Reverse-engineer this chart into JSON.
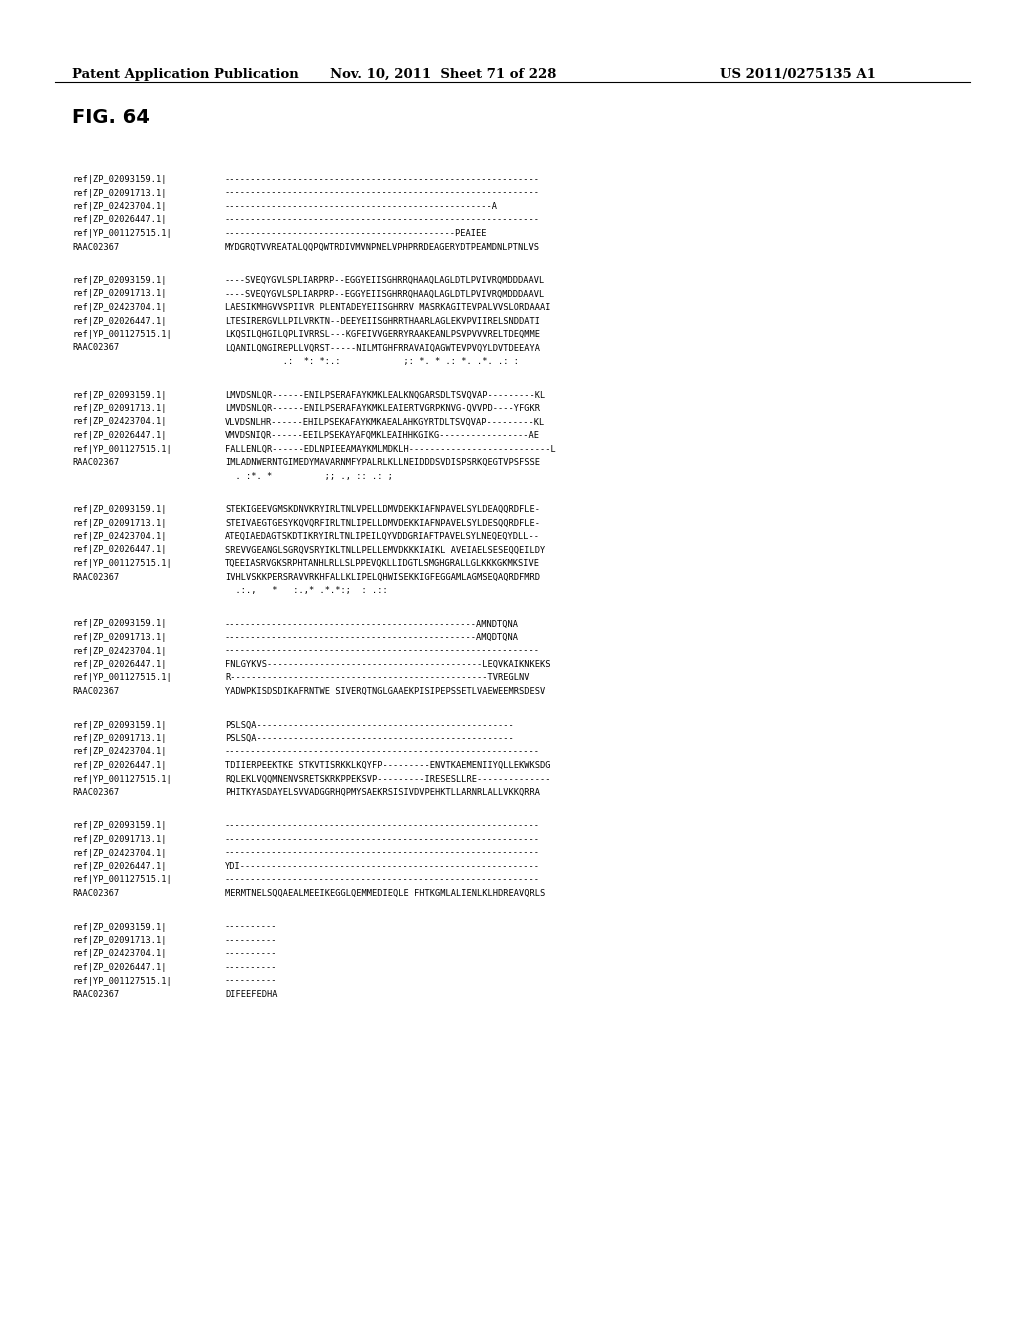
{
  "header_left": "Patent Application Publication",
  "header_middle": "Nov. 10, 2011  Sheet 71 of 228",
  "header_right": "US 2011/0275135 A1",
  "fig_label": "FIG. 64",
  "sequences": [
    {
      "block": 1,
      "rows": [
        [
          "ref|ZP_02093159.1|",
          "------------------------------------------------------------"
        ],
        [
          "ref|ZP_02091713.1|",
          "------------------------------------------------------------"
        ],
        [
          "ref|ZP_02423704.1|",
          "---------------------------------------------------A"
        ],
        [
          "ref|ZP_02026447.1|",
          "------------------------------------------------------------"
        ],
        [
          "ref|YP_001127515.1|",
          "--------------------------------------------PEAIEE"
        ],
        [
          "RAAC02367",
          "MYDGRQTVVREATALQQPQWTRDIVMVNPNELVPHPRRDEAGERYDTPEAMDNLPTNLVS"
        ]
      ],
      "consensus": ""
    },
    {
      "block": 2,
      "rows": [
        [
          "ref|ZP_02093159.1|",
          "----SVEQYGVLSPLIARPRP--EGGYEIISGHRRQHAAQLAGLDTLPVIVRQMDDDAAVL"
        ],
        [
          "ref|ZP_02091713.1|",
          "----SVEQYGVLSPLIARPRP--EGGYEIISGHRRQHAAQLAGLDTLPVIVRQMDDDAAVL"
        ],
        [
          "ref|ZP_02423704.1|",
          "LAESIKMHGVVSPIIVR PLENTADEYEIISGHRRV MASRKAGITEVPALVVSLORDAAAI"
        ],
        [
          "ref|ZP_02026447.1|",
          "LTESIRERGVLLPILVRKTN--DEEYEIISGHRRTHAARLAGLEKVPVIIRELSNDDATI"
        ],
        [
          "ref|YP_001127515.1|",
          "LKQSILQHGILQPLIVRRSL---KGFEIVVGERRYRAAKEANLPSVPVVVRELTDEQMME"
        ],
        [
          "RAAC02367",
          "LQANILQNGIREPLLVQRST-----NILMTGHFRRAVAIQAGWTEVPVQYLDVTDEEAYA"
        ]
      ],
      "consensus": "           .:  *: *:.:            ;: *. * .: *. .*. .: :"
    },
    {
      "block": 3,
      "rows": [
        [
          "ref|ZP_02093159.1|",
          "LMVDSNLQR------ENILPSERAFAYKMKLEALKNQGARSDLTSVQVAP---------KL"
        ],
        [
          "ref|ZP_02091713.1|",
          "LMVDSNLQR------ENILPSERAFAYKMKLEAIERTVGRPKNVG-QVVPD----YFGKR"
        ],
        [
          "ref|ZP_02423704.1|",
          "VLVDSNLHR------EHILPSEKAFAYKMKAEALAHKGYRTDLTSVQVAP---------KL"
        ],
        [
          "ref|ZP_02026447.1|",
          "VMVDSNIQR------EEILPSEKAYAFQMKLEAIHHKGIKG-----------------AE"
        ],
        [
          "ref|YP_001127515.1|",
          "FALLENLQR------EDLNPIEEAMAYKMLMDKLH---------------------------L"
        ],
        [
          "RAAC02367",
          "IMLADNWERNTGIMEDYMAVARNMFYPALRLKLLNEIDDDSVDISPSRKQEGTVPSFSSE"
        ]
      ],
      "consensus": "  . :*. *          ;; ., :: .: ;"
    },
    {
      "block": 4,
      "rows": [
        [
          "ref|ZP_02093159.1|",
          "STEKIGEEVGMSKDNVKRYIRLTNLVPELLDMVDEKKIAFNPAVELSYLDEAQQRDFLE-"
        ],
        [
          "ref|ZP_02091713.1|",
          "STEIVAEGTGESYKQVQRFIRLTNLIPELLDMVDEKKIAFNPAVELSYLDESQQRDFLE-"
        ],
        [
          "ref|ZP_02423704.1|",
          "ATEQIAEDAGTSKDTIKRYIRLTNLIPEILQYVDDGRIAFTPAVELSYLNEQEQYDLL--"
        ],
        [
          "ref|ZP_02026447.1|",
          "SREVVGEANGLSGRQVSRYIKLTNLLPELLEMVDKKKIAIKL AVEIAELSESEQQEILDY"
        ],
        [
          "ref|YP_001127515.1|",
          "TQEEIASRVGKSRPHTANHLRLLSLPPEVQKLLIDGTLSMGHGRALLGLKKKGKMKSIVE"
        ],
        [
          "RAAC02367",
          "IVHLVSKKPERSRAVVRKHFALLKLIPELQHWISEKKIGFEGGAMLAGMSEQAQRDFMRD"
        ]
      ],
      "consensus": "  .:.,   *   :.,* .*.*:;  : .::"
    },
    {
      "block": 5,
      "rows": [
        [
          "ref|ZP_02093159.1|",
          "------------------------------------------------AMNDTQNA"
        ],
        [
          "ref|ZP_02091713.1|",
          "------------------------------------------------AMQDTQNA"
        ],
        [
          "ref|ZP_02423704.1|",
          "------------------------------------------------------------"
        ],
        [
          "ref|ZP_02026447.1|",
          "FNLGYKVS-----------------------------------------LEQVKAIKNKEKS"
        ],
        [
          "ref|YP_001127515.1|",
          "R-------------------------------------------------TVREGLNV"
        ],
        [
          "RAAC02367",
          "YADWPKISDSDIKAFRNTWE SIVERQTNGLGAAEKPISIPEPSSETLVAEWEEMRSDESV"
        ]
      ],
      "consensus": ""
    },
    {
      "block": 6,
      "rows": [
        [
          "ref|ZP_02093159.1|",
          "PSLSQA-------------------------------------------------"
        ],
        [
          "ref|ZP_02091713.1|",
          "PSLSQA-------------------------------------------------"
        ],
        [
          "ref|ZP_02423704.1|",
          "------------------------------------------------------------"
        ],
        [
          "ref|ZP_02026447.1|",
          "TDIIERPEEKTKE STKVTISRKKLKQYFP---------ENVTKAEMENIIYQLLEKWKSDG"
        ],
        [
          "ref|YP_001127515.1|",
          "RQLEKLVQQMNENVSRETSKRKPPEKSVP---------IRESESLLRE--------------"
        ],
        [
          "RAAC02367",
          "PHITKYASDAYELSVVADGGRHQPMYSAEKRSISIVDVPEHKTLLARNRLALLVKKQRRA"
        ]
      ],
      "consensus": ""
    },
    {
      "block": 7,
      "rows": [
        [
          "ref|ZP_02093159.1|",
          "------------------------------------------------------------"
        ],
        [
          "ref|ZP_02091713.1|",
          "------------------------------------------------------------"
        ],
        [
          "ref|ZP_02423704.1|",
          "------------------------------------------------------------"
        ],
        [
          "ref|ZP_02026447.1|",
          "YDI---------------------------------------------------------"
        ],
        [
          "ref|YP_001127515.1|",
          "------------------------------------------------------------"
        ],
        [
          "RAAC02367",
          "MERMTNELSQQAEALMEEIKEGGLQEMMEDIEQLE FHTKGMLALIENLKLHDREAVQRLS"
        ]
      ],
      "consensus": ""
    },
    {
      "block": 8,
      "rows": [
        [
          "ref|ZP_02093159.1|",
          "----------"
        ],
        [
          "ref|ZP_02091713.1|",
          "----------"
        ],
        [
          "ref|ZP_02423704.1|",
          "----------"
        ],
        [
          "ref|ZP_02026447.1|",
          "----------"
        ],
        [
          "ref|YP_001127515.1|",
          "----------"
        ],
        [
          "RAAC02367",
          "DIFEEFEDHA"
        ]
      ],
      "consensus": ""
    }
  ]
}
